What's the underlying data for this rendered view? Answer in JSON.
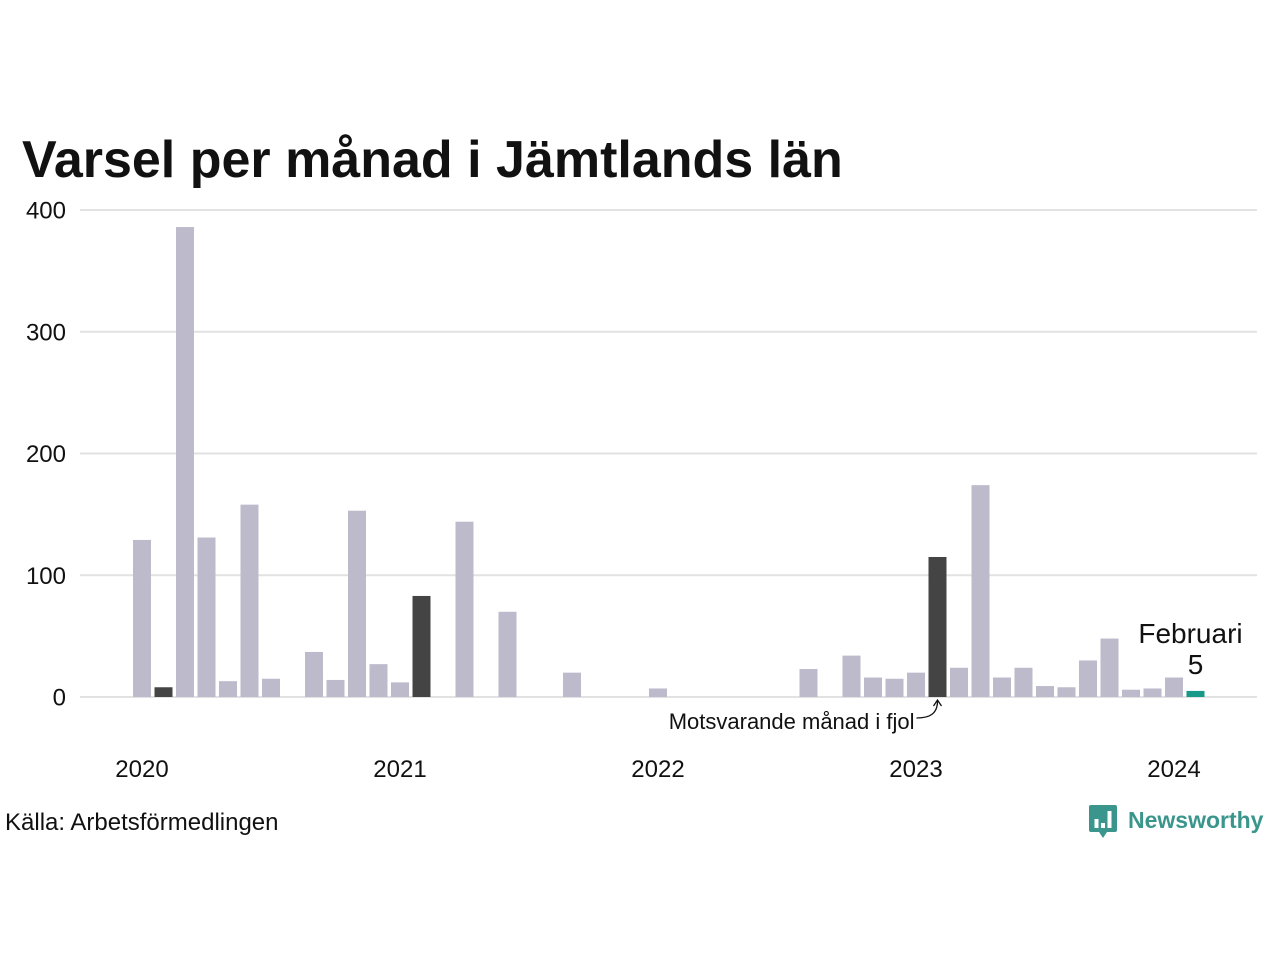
{
  "chart_data": {
    "type": "bar",
    "title": "Varsel per månad i Jämtlands län",
    "x": [
      "2020-01",
      "2020-02",
      "2020-03",
      "2020-04",
      "2020-05",
      "2020-06",
      "2020-07",
      "2020-08",
      "2020-09",
      "2020-10",
      "2020-11",
      "2020-12",
      "2021-01",
      "2021-02",
      "2021-03",
      "2021-04",
      "2021-05",
      "2021-06",
      "2021-07",
      "2021-08",
      "2021-09",
      "2021-10",
      "2021-11",
      "2021-12",
      "2022-01",
      "2022-02",
      "2022-03",
      "2022-04",
      "2022-05",
      "2022-06",
      "2022-07",
      "2022-08",
      "2022-09",
      "2022-10",
      "2022-11",
      "2022-12",
      "2023-01",
      "2023-02",
      "2023-03",
      "2023-04",
      "2023-05",
      "2023-06",
      "2023-07",
      "2023-08",
      "2023-09",
      "2023-10",
      "2023-11",
      "2023-12",
      "2024-01",
      "2024-02"
    ],
    "values": [
      129,
      8,
      386,
      131,
      13,
      158,
      15,
      0,
      37,
      14,
      153,
      27,
      12,
      83,
      0,
      144,
      0,
      70,
      0,
      0,
      20,
      0,
      0,
      0,
      7,
      0,
      0,
      0,
      0,
      0,
      0,
      23,
      0,
      34,
      16,
      15,
      20,
      115,
      24,
      174,
      16,
      24,
      9,
      8,
      30,
      48,
      6,
      7,
      16,
      5
    ],
    "ylim": [
      0,
      400
    ],
    "yticks": [
      0,
      100,
      200,
      300,
      400
    ],
    "xticks": [
      {
        "label": "2020",
        "x": "2020-01"
      },
      {
        "label": "2021",
        "x": "2021-01"
      },
      {
        "label": "2022",
        "x": "2022-01"
      },
      {
        "label": "2023",
        "x": "2023-01"
      },
      {
        "label": "2024",
        "x": "2024-01"
      }
    ],
    "grid": true,
    "bar_color": "#bdbbcb",
    "highlights": [
      {
        "x": "2020-02",
        "color": "#444444"
      },
      {
        "x": "2021-02",
        "color": "#444444"
      },
      {
        "x": "2022-02",
        "color": "#444444"
      },
      {
        "x": "2023-02",
        "color": "#444444"
      },
      {
        "x": "2024-02",
        "color": "#17998a"
      }
    ],
    "annotations": [
      {
        "text": "Motsvarande månad i fjol",
        "x": "2023-02",
        "arrow": true
      },
      {
        "text": "Februari",
        "x": "2024-02",
        "value_label": "5"
      }
    ]
  },
  "source": "Källa: Arbetsförmedlingen",
  "logo": {
    "text": "Newsworthy",
    "icon": "newsworthy-logo-icon",
    "color": "#3a968c"
  }
}
